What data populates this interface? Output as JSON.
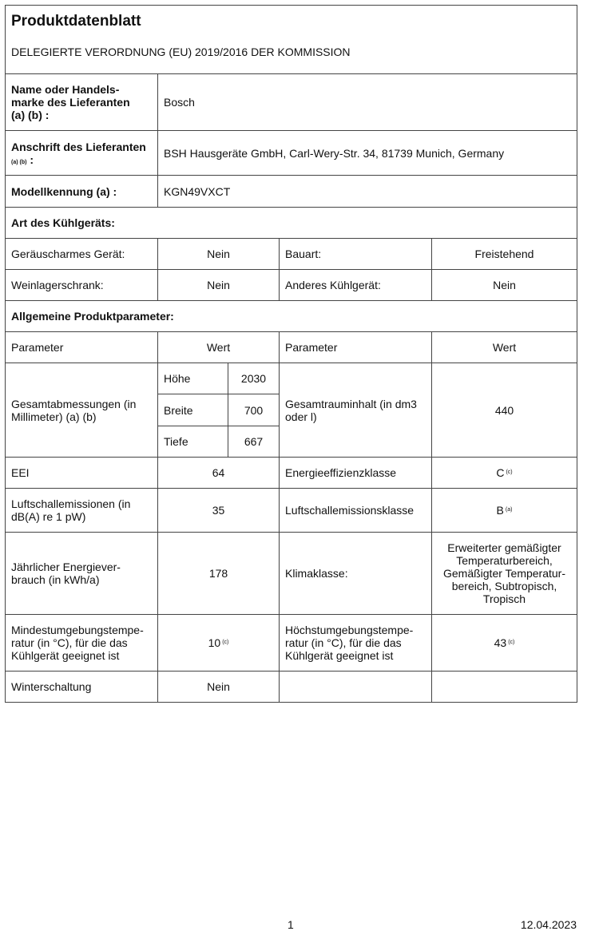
{
  "title": "Produktdatenblatt",
  "subtitle": "DELEGIERTE VERORDNUNG (EU) 2019/2016 DER KOMMISSION",
  "supplier": {
    "name_label": "Name oder Handels-\nmarke des Lieferanten\n(a) (b) :",
    "name": "Bosch",
    "address_label": "Anschrift des Lieferanten",
    "address_label_note": "(a) (b)",
    "address_label_colon": ":",
    "address": "BSH Hausgeräte GmbH, Carl-Wery-Str. 34, 81739 Munich, Germany",
    "model_label": "Modellkennung (a) :",
    "model": "KGN49VXCT"
  },
  "type_section": {
    "heading": "Art des Kühlgeräts:",
    "low_noise_label": "Geräuscharmes Gerät:",
    "low_noise": "Nein",
    "design_label": "Bauart:",
    "design": "Freistehend",
    "wine_label": "Weinlagerschrank:",
    "wine": "Nein",
    "other_label": "Anderes Kühlgerät:",
    "other": "Nein"
  },
  "params": {
    "heading": "Allgemeine Produktparameter:",
    "col_param": "Parameter",
    "col_value": "Wert",
    "dims_label": "Gesamtabmessungen (in Millimeter) (a) (b)",
    "height_label": "Höhe",
    "height": "2030",
    "width_label": "Breite",
    "width": "700",
    "depth_label": "Tiefe",
    "depth": "667",
    "volume_label": "Gesamtrauminhalt (in dm3 oder l)",
    "volume": "440",
    "eei_label": "EEI",
    "eei": "64",
    "energy_class_label": "Energieeffizienzklasse",
    "energy_class": "C",
    "energy_class_note": "(c)",
    "noise_label": "Luftschallemissionen (in dB(A) re 1 pW)",
    "noise": "35",
    "noise_class_label": "Luftschallemissionsklasse",
    "noise_class": "B",
    "noise_class_note": "(a)",
    "consumption_label": "Jährlicher Energiever-\nbrauch (in kWh/a)",
    "consumption": "178",
    "climate_label": "Klimaklasse:",
    "climate": "Erweiterter gemäßigter Temperaturbereich, Gemäßigter Temperatur-bereich, Subtropisch, Tropisch",
    "min_temp_label": "Mindestumgebungstempe-\nratur (in °C), für die das Kühlgerät geeignet ist",
    "min_temp": "10",
    "min_temp_note": "(c)",
    "max_temp_label": "Höchstumgebungstempe-\nratur (in °C), für die das Kühlgerät geeignet ist",
    "max_temp": "43",
    "max_temp_note": "(c)",
    "winter_label": "Winterschaltung",
    "winter": "Nein"
  },
  "footer": {
    "page": "1",
    "date": "12.04.2023"
  }
}
